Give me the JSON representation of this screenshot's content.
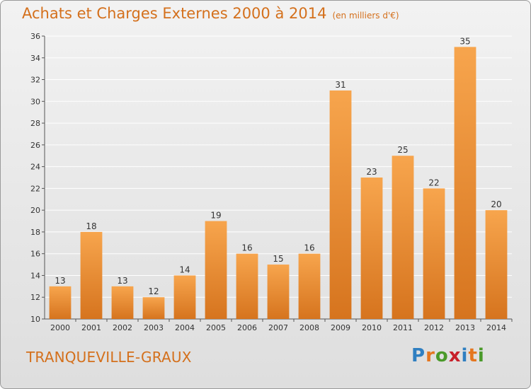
{
  "header": {
    "title": "Achats et Charges Externes 2000 à 2014",
    "unit": "(en milliers d'€)"
  },
  "footer": {
    "commune": "TRANQUEVILLE-GRAUX",
    "logo_text": "Proxiti",
    "logo_letters": [
      {
        "ch": "P",
        "color": "#2f7fc1"
      },
      {
        "ch": "r",
        "color": "#e5761f"
      },
      {
        "ch": "o",
        "color": "#4a9a2a"
      },
      {
        "ch": "x",
        "color": "#c8202a"
      },
      {
        "ch": "i",
        "color": "#2f7fc1"
      },
      {
        "ch": "t",
        "color": "#e5761f"
      },
      {
        "ch": "i",
        "color": "#4a9a2a"
      }
    ]
  },
  "colors": {
    "bar_light": "#f7a54d",
    "bar_dark": "#d6741e",
    "accent_text": "#d4701c",
    "grid": "#ffffff"
  },
  "chart_data": {
    "type": "bar",
    "title": "Achats et Charges Externes 2000 à 2014",
    "subtitle": "(en milliers d'€)",
    "categories": [
      "2000",
      "2001",
      "2002",
      "2003",
      "2004",
      "2005",
      "2006",
      "2007",
      "2008",
      "2009",
      "2010",
      "2011",
      "2012",
      "2013",
      "2014"
    ],
    "values": [
      13,
      18,
      13,
      12,
      14,
      19,
      16,
      15,
      16,
      31,
      23,
      25,
      22,
      35,
      20
    ],
    "ylim": [
      10,
      36
    ],
    "yticks": [
      10,
      12,
      14,
      16,
      18,
      20,
      22,
      24,
      26,
      28,
      30,
      32,
      34,
      36
    ],
    "xlabel": "",
    "ylabel": "",
    "grid": true,
    "data_labels": true
  }
}
